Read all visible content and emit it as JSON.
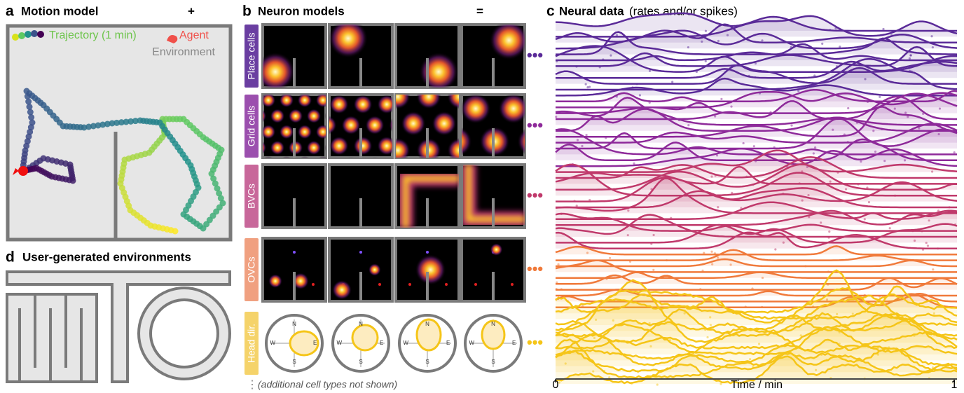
{
  "panel_a": {
    "letter": "a",
    "title": "Motion model",
    "plus": "+",
    "trajectory_label": "Trajectory (1 min)",
    "agent_label": "Agent",
    "environment_label": "Environment"
  },
  "panel_b": {
    "letter": "b",
    "title": "Neuron models",
    "equals": "=",
    "rows": [
      "Place cells",
      "Grid cells",
      "BVCs",
      "OVCs",
      "Head dir."
    ],
    "compass_labels": [
      "N",
      "E",
      "S",
      "W"
    ],
    "footnote": "(additional cell types not shown)"
  },
  "panel_c": {
    "letter": "c",
    "title": "Neural data",
    "subtitle": "(rates and/or spikes)",
    "xlabel": "Time / min",
    "xlim": [
      0,
      1
    ],
    "xticks": [
      0,
      1
    ]
  },
  "panel_d": {
    "letter": "d",
    "title": "User-generated environments"
  }
}
